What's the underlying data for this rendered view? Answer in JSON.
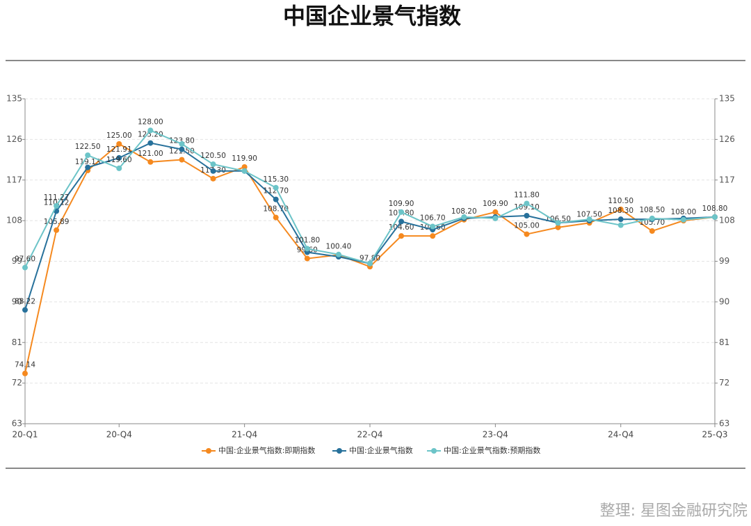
{
  "chart_data": {
    "type": "line",
    "title": "中国企业景气指数",
    "source": "整理:  星图金融研究院",
    "categories": [
      "20-Q1",
      null,
      null,
      "20-Q4",
      null,
      null,
      null,
      "21-Q4",
      null,
      null,
      null,
      "22-Q4",
      null,
      null,
      null,
      "23-Q4",
      null,
      null,
      null,
      "24-Q4",
      null,
      null,
      "25-Q3"
    ],
    "ylim": [
      63,
      135
    ],
    "yticks": [
      63,
      72,
      81,
      90,
      99,
      108,
      117,
      126,
      135
    ],
    "grid": true,
    "series": [
      {
        "name": "中国:企业景气指数:即期指数",
        "color": "#f5891f",
        "values": [
          74.14,
          105.89,
          119.13,
          125.0,
          121.0,
          121.5,
          117.3,
          119.9,
          108.7,
          99.6,
          100.4,
          97.8,
          104.6,
          104.6,
          108.2,
          109.9,
          105.0,
          106.5,
          107.5,
          110.5,
          105.7,
          108.0,
          108.8
        ],
        "value_labels": [
          "74.14",
          "105.89",
          "119.13",
          "125.00",
          "121.00",
          "121.50",
          "117.30",
          "119.90",
          "108.70",
          "99.60",
          "100.40",
          "97.80",
          "104.60",
          "104.60",
          "108.20",
          "109.90",
          "105.00",
          "106.50",
          "107.50",
          "110.50",
          "105.70",
          "108.00",
          "108.80"
        ]
      },
      {
        "name": "中国:企业景气指数",
        "color": "#27719b",
        "values": [
          88.22,
          110.12,
          119.8,
          121.91,
          125.2,
          123.8,
          119.0,
          119.0,
          112.7,
          101.0,
          100.0,
          98.5,
          107.8,
          106.0,
          108.5,
          108.8,
          109.1,
          107.5,
          108.0,
          108.3,
          108.3,
          108.5,
          108.8
        ],
        "value_labels": [
          "88.22",
          "110.12",
          null,
          "121.91",
          "125.20",
          "123.80",
          null,
          null,
          "112.70",
          null,
          null,
          null,
          "107.80",
          null,
          null,
          null,
          "109.10",
          null,
          null,
          "108.30",
          null,
          null,
          null
        ]
      },
      {
        "name": "中国:企业景气指数:预期指数",
        "color": "#6cc4c8",
        "values": [
          97.6,
          111.27,
          122.5,
          119.6,
          128.0,
          125.0,
          120.5,
          119.0,
          115.3,
          101.8,
          100.5,
          98.5,
          109.9,
          106.7,
          108.8,
          108.5,
          111.8,
          107.5,
          108.3,
          107.0,
          108.5,
          108.2,
          108.8
        ],
        "value_labels": [
          "97.60",
          "111.27",
          "122.50",
          "119.60",
          "128.00",
          null,
          "120.50",
          null,
          "115.30",
          "101.80",
          null,
          null,
          "109.90",
          "106.70",
          null,
          null,
          "111.80",
          null,
          null,
          null,
          "108.50",
          null,
          null
        ]
      }
    ]
  }
}
